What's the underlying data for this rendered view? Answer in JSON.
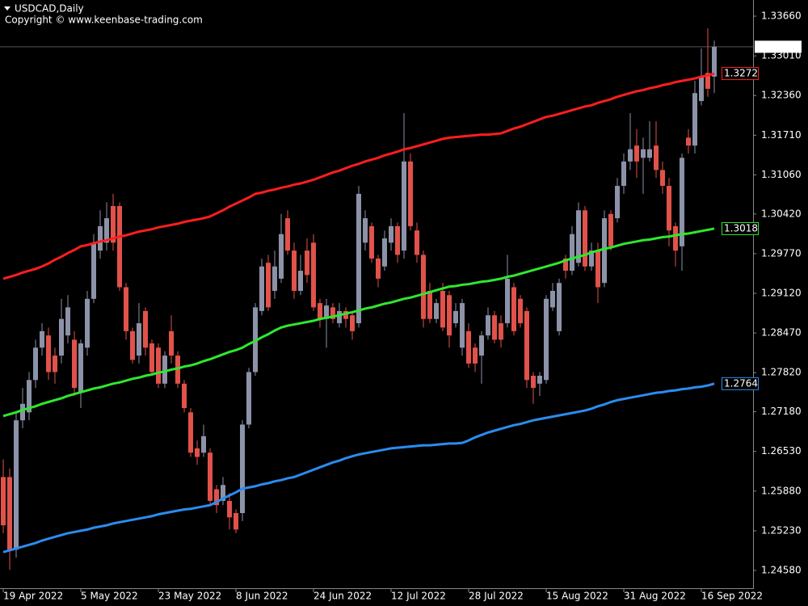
{
  "chart_data": {
    "type": "candlestick",
    "title": "USDCAD,Daily",
    "subtitle": "Copyright © www.keenbase-trading.com",
    "categories": [
      "19 Apr 2022",
      null,
      null,
      null,
      null,
      null,
      null,
      null,
      null,
      null,
      null,
      null,
      "5 May 2022",
      null,
      null,
      null,
      null,
      null,
      null,
      null,
      null,
      null,
      null,
      null,
      "23 May 2022",
      null,
      null,
      null,
      null,
      null,
      null,
      null,
      null,
      null,
      null,
      null,
      "8 Jun 2022",
      null,
      null,
      null,
      null,
      null,
      null,
      null,
      null,
      null,
      null,
      null,
      "24 Jun 2022",
      null,
      null,
      null,
      null,
      null,
      null,
      null,
      null,
      null,
      null,
      null,
      "12 Jul 2022",
      null,
      null,
      null,
      null,
      null,
      null,
      null,
      null,
      null,
      null,
      null,
      "28 Jul 2022",
      null,
      null,
      null,
      null,
      null,
      null,
      null,
      null,
      null,
      null,
      null,
      "15 Aug 2022",
      null,
      null,
      null,
      null,
      null,
      null,
      null,
      null,
      null,
      null,
      null,
      "31 Aug 2022",
      null,
      null,
      null,
      null,
      null,
      null,
      null,
      null,
      null,
      null,
      null,
      "16 Sep 2022",
      null,
      null
    ],
    "open": [
      1.2611,
      1.2611,
      1.2492,
      1.2704,
      1.2717,
      1.277,
      1.2823,
      1.2843,
      1.281,
      1.281,
      1.2843,
      1.2836,
      1.275,
      1.2823,
      1.2903,
      1.2982,
      1.2995,
      1.3055,
      1.3055,
      1.2922,
      1.285,
      1.281,
      1.2883,
      1.283,
      1.2823,
      1.2764,
      1.285,
      1.281,
      1.2764,
      1.2717,
      1.2658,
      1.2651,
      1.2651,
      1.2591,
      1.2572,
      1.2572,
      1.2552,
      1.2552,
      1.2697,
      1.2783,
      1.2883,
      1.2962,
      1.2916,
      1.2936,
      1.3035,
      1.2982,
      1.2916,
      1.2982,
      1.2995,
      1.2896,
      1.287,
      1.2889,
      1.2863,
      1.2883,
      1.2876,
      1.2863,
      1.2995,
      1.3022,
      1.2969,
      1.2956,
      1.2995,
      1.3022,
      1.2982,
      1.3128,
      1.3015,
      1.2975,
      1.2916,
      1.287,
      1.2916,
      1.2909,
      1.2863,
      1.2823,
      1.285,
      1.2823,
      1.281,
      1.2843,
      1.2876,
      1.2863,
      1.2863,
      1.2922,
      1.2903,
      1.2883,
      1.2777,
      1.2764,
      1.277,
      1.2889,
      1.285,
      1.2969,
      1.2949,
      1.2962,
      1.3048,
      1.2956,
      1.2982,
      1.2929,
      1.3042,
      1.3035,
      1.3088,
      1.3128,
      1.3154,
      1.3134,
      1.3134,
      1.3154,
      1.3114,
      1.3088,
      1.3022,
      1.2989,
      1.3167,
      1.3154,
      1.3227,
      1.3273,
      1.3267
    ],
    "high": [
      1.264,
      1.2625,
      1.2717,
      1.2757,
      1.2783,
      1.2836,
      1.2863,
      1.2856,
      1.2823,
      1.2903,
      1.2909,
      1.285,
      1.2836,
      1.2916,
      1.3009,
      1.3048,
      1.3061,
      1.3075,
      1.3061,
      1.2929,
      1.2856,
      1.2896,
      1.2889,
      1.2836,
      1.283,
      1.2817,
      1.2876,
      1.2817,
      1.277,
      1.2724,
      1.2671,
      1.2697,
      1.2658,
      1.2598,
      1.2611,
      1.2585,
      1.2558,
      1.2704,
      1.279,
      1.2896,
      1.2969,
      1.2975,
      1.2982,
      1.3042,
      1.3048,
      1.2995,
      1.2975,
      1.3002,
      1.3009,
      1.2903,
      1.2903,
      1.2896,
      1.2896,
      1.2889,
      1.2883,
      1.3088,
      1.3048,
      1.3028,
      1.2975,
      1.3015,
      1.3035,
      1.3028,
      1.3207,
      1.3141,
      1.3028,
      1.2982,
      1.2929,
      1.2903,
      1.2929,
      1.2916,
      1.2896,
      1.2903,
      1.2863,
      1.283,
      1.285,
      1.2889,
      1.2883,
      1.2876,
      1.2975,
      1.2929,
      1.2909,
      1.2889,
      1.2783,
      1.2783,
      1.2909,
      1.2929,
      1.2936,
      1.2975,
      1.3022,
      1.3061,
      1.3055,
      1.2995,
      1.2995,
      1.3048,
      1.3048,
      1.3101,
      1.3141,
      1.3207,
      1.3181,
      1.3167,
      1.3194,
      1.3194,
      1.3128,
      1.3101,
      1.3028,
      1.3141,
      1.3181,
      1.326,
      1.3313,
      1.3346,
      1.3326
    ],
    "low": [
      1.2519,
      1.2459,
      1.2479,
      1.2691,
      1.2704,
      1.2757,
      1.281,
      1.277,
      1.2764,
      1.2797,
      1.283,
      1.2744,
      1.2724,
      1.281,
      1.2896,
      1.2969,
      1.2982,
      1.2982,
      1.2916,
      1.2836,
      1.2797,
      1.2797,
      1.281,
      1.2777,
      1.2757,
      1.2757,
      1.2797,
      1.2757,
      1.2717,
      1.2644,
      1.2631,
      1.2644,
      1.2565,
      1.2552,
      1.2565,
      1.2525,
      1.2519,
      1.2539,
      1.2691,
      1.2777,
      1.2876,
      1.2883,
      1.2903,
      1.2929,
      1.2975,
      1.2903,
      1.2909,
      1.2929,
      1.2883,
      1.2856,
      1.2823,
      1.2863,
      1.2856,
      1.2856,
      1.2836,
      1.2856,
      1.2982,
      1.2962,
      1.2922,
      1.2949,
      1.2982,
      1.2962,
      1.2969,
      1.3015,
      1.2962,
      1.2856,
      1.2863,
      1.2863,
      1.285,
      1.2823,
      1.2856,
      1.281,
      1.279,
      1.2783,
      1.2764,
      1.2836,
      1.283,
      1.2823,
      1.2856,
      1.2843,
      1.2856,
      1.2757,
      1.2731,
      1.2744,
      1.2764,
      1.2883,
      1.2843,
      1.2936,
      1.2942,
      1.2956,
      1.2949,
      1.2949,
      1.2896,
      1.2922,
      1.2982,
      1.3028,
      1.3075,
      1.3114,
      1.3101,
      1.3075,
      1.3128,
      1.3101,
      1.3075,
      1.2989,
      1.2956,
      1.2949,
      1.3141,
      1.3141,
      1.322,
      1.3234,
      1.324
    ],
    "close": [
      1.2532,
      1.2492,
      1.2704,
      1.2731,
      1.277,
      1.2823,
      1.285,
      1.2783,
      1.2783,
      1.287,
      1.2889,
      1.2757,
      1.283,
      1.2903,
      1.2995,
      1.3022,
      1.3035,
      1.2995,
      1.2922,
      1.285,
      1.2803,
      1.2863,
      1.2823,
      1.2783,
      1.2764,
      1.281,
      1.281,
      1.2764,
      1.2724,
      1.2651,
      1.2644,
      1.2678,
      1.2572,
      1.2565,
      1.2598,
      1.2545,
      1.2525,
      1.2697,
      1.2783,
      1.2889,
      1.2956,
      1.2889,
      1.2956,
      1.3009,
      1.2982,
      1.2916,
      1.2949,
      1.2942,
      1.2889,
      1.287,
      1.2892,
      1.287,
      1.2883,
      1.287,
      1.285,
      1.3075,
      1.3035,
      1.2969,
      1.2936,
      1.3002,
      1.3022,
      1.2975,
      1.3128,
      1.3022,
      1.2975,
      1.287,
      1.287,
      1.2896,
      1.2856,
      1.2843,
      1.2883,
      1.2896,
      1.2797,
      1.2797,
      1.2843,
      1.2876,
      1.2836,
      1.2836,
      1.2936,
      1.285,
      1.2863,
      1.277,
      1.2757,
      1.2777,
      1.2903,
      1.2916,
      1.2929,
      1.2949,
      1.3009,
      1.3048,
      1.2956,
      1.2982,
      1.2922,
      1.3035,
      1.2989,
      1.3088,
      1.3128,
      1.3148,
      1.3128,
      1.3148,
      1.3148,
      1.3114,
      1.3088,
      1.3015,
      1.2982,
      1.3134,
      1.3154,
      1.324,
      1.3267,
      1.3247,
      1.33159
    ],
    "up_color": "#8c92a8",
    "down_color": "#e0524a",
    "lines": [
      {
        "color": "#ff1e1e",
        "values": [
          1.2936,
          1.2939,
          1.2942,
          1.2946,
          1.2949,
          1.2952,
          1.2956,
          1.2961,
          1.2967,
          1.2972,
          1.2978,
          1.2983,
          1.2989,
          1.2991,
          1.2994,
          1.2997,
          1.2999,
          1.3002,
          1.3005,
          1.3007,
          1.301,
          1.3013,
          1.3015,
          1.3017,
          1.302,
          1.3022,
          1.3024,
          1.3026,
          1.3029,
          1.3031,
          1.3033,
          1.3035,
          1.3038,
          1.3043,
          1.3048,
          1.3054,
          1.3059,
          1.3064,
          1.3069,
          1.3075,
          1.3077,
          1.308,
          1.3082,
          1.3085,
          1.3087,
          1.309,
          1.3092,
          1.3095,
          1.3098,
          1.3102,
          1.3106,
          1.311,
          1.3113,
          1.3117,
          1.3121,
          1.3124,
          1.3128,
          1.3131,
          1.3134,
          1.3138,
          1.3141,
          1.3144,
          1.3148,
          1.315,
          1.3153,
          1.3156,
          1.3159,
          1.3162,
          1.3165,
          1.3167,
          1.3168,
          1.3169,
          1.317,
          1.3171,
          1.3172,
          1.3172,
          1.3173,
          1.3174,
          1.3178,
          1.3182,
          1.3185,
          1.3189,
          1.3193,
          1.3197,
          1.3201,
          1.3203,
          1.3206,
          1.3209,
          1.3212,
          1.3215,
          1.3218,
          1.322,
          1.3224,
          1.3227,
          1.323,
          1.3234,
          1.3237,
          1.324,
          1.3243,
          1.3245,
          1.3248,
          1.325,
          1.3253,
          1.3255,
          1.3258,
          1.326,
          1.3262,
          1.3264,
          1.3267,
          1.3269,
          1.3272
        ]
      },
      {
        "color": "#2ee82e",
        "values": [
          1.2711,
          1.2714,
          1.2717,
          1.2721,
          1.2724,
          1.2727,
          1.2731,
          1.2734,
          1.2737,
          1.274,
          1.2744,
          1.2747,
          1.275,
          1.2753,
          1.2756,
          1.2758,
          1.2761,
          1.2764,
          1.2766,
          1.2769,
          1.2772,
          1.2774,
          1.2777,
          1.2779,
          1.2782,
          1.2784,
          1.2787,
          1.2789,
          1.2792,
          1.2794,
          1.2797,
          1.2801,
          1.2804,
          1.2808,
          1.2812,
          1.2816,
          1.2819,
          1.2823,
          1.2829,
          1.2834,
          1.284,
          1.2845,
          1.2851,
          1.2856,
          1.2859,
          1.2861,
          1.2863,
          1.2865,
          1.2867,
          1.287,
          1.2872,
          1.2874,
          1.2876,
          1.2879,
          1.2881,
          1.2884,
          1.2887,
          1.2889,
          1.2892,
          1.2895,
          1.2897,
          1.29,
          1.2903,
          1.2905,
          1.2908,
          1.2911,
          1.2914,
          1.2917,
          1.292,
          1.2923,
          1.2924,
          1.2926,
          1.2927,
          1.2929,
          1.2931,
          1.2932,
          1.2934,
          1.2936,
          1.2939,
          1.2941,
          1.2944,
          1.2947,
          1.295,
          1.2953,
          1.2956,
          1.2959,
          1.2962,
          1.2966,
          1.2969,
          1.2972,
          1.2975,
          1.2979,
          1.2982,
          1.2985,
          1.2987,
          1.299,
          1.2993,
          1.2995,
          1.2997,
          1.2999,
          1.3,
          1.3002,
          1.3004,
          1.3005,
          1.3007,
          1.3009,
          1.301,
          1.3012,
          1.3014,
          1.3016,
          1.3018
        ]
      },
      {
        "color": "#2b8cf0",
        "values": [
          1.2488,
          1.2491,
          1.2494,
          1.2497,
          1.25,
          1.2503,
          1.2507,
          1.251,
          1.2513,
          1.2516,
          1.2519,
          1.2521,
          1.2523,
          1.2525,
          1.2528,
          1.253,
          1.2532,
          1.2535,
          1.2537,
          1.2539,
          1.2541,
          1.2543,
          1.2545,
          1.2547,
          1.255,
          1.2552,
          1.2554,
          1.2556,
          1.2558,
          1.2559,
          1.2561,
          1.2563,
          1.2565,
          1.257,
          1.2576,
          1.2581,
          1.2586,
          1.2592,
          1.2594,
          1.2596,
          1.2599,
          1.2601,
          1.2604,
          1.2606,
          1.2609,
          1.2611,
          1.2615,
          1.2619,
          1.2623,
          1.2627,
          1.2631,
          1.2635,
          1.2638,
          1.2642,
          1.2645,
          1.2648,
          1.265,
          1.2652,
          1.2654,
          1.2656,
          1.2658,
          1.2659,
          1.266,
          1.2661,
          1.2662,
          1.2663,
          1.2663,
          1.2664,
          1.2665,
          1.2666,
          1.2666,
          1.2667,
          1.2671,
          1.2676,
          1.268,
          1.2684,
          1.2687,
          1.269,
          1.2693,
          1.2696,
          1.2698,
          1.2701,
          1.2704,
          1.2706,
          1.2708,
          1.271,
          1.2712,
          1.2714,
          1.2716,
          1.2718,
          1.272,
          1.2723,
          1.2727,
          1.273,
          1.2734,
          1.2737,
          1.2739,
          1.2741,
          1.2743,
          1.2745,
          1.2747,
          1.2749,
          1.275,
          1.2752,
          1.2753,
          1.2755,
          1.2756,
          1.2758,
          1.2759,
          1.2761,
          1.2764
        ]
      }
    ],
    "ylim": [
      1.24289,
      1.33925
    ],
    "yticks": [
      {
        "value": 1.3366,
        "label": "1.33660"
      },
      {
        "value": 1.3301,
        "label": "1.33010"
      },
      {
        "value": 1.3236,
        "label": "1.32360"
      },
      {
        "value": 1.3171,
        "label": "1.31710"
      },
      {
        "value": 1.3106,
        "label": "1.31060"
      },
      {
        "value": 1.3042,
        "label": "1.30420"
      },
      {
        "value": 1.2977,
        "label": "1.29770"
      },
      {
        "value": 1.2912,
        "label": "1.29120"
      },
      {
        "value": 1.2847,
        "label": "1.28470"
      },
      {
        "value": 1.2782,
        "label": "1.27820"
      },
      {
        "value": 1.2718,
        "label": "1.27180"
      },
      {
        "value": 1.2653,
        "label": "1.26530"
      },
      {
        "value": 1.2588,
        "label": "1.25880"
      },
      {
        "value": 1.2523,
        "label": "1.25230"
      },
      {
        "value": 1.2458,
        "label": "1.24580"
      }
    ],
    "grid": false
  }
}
